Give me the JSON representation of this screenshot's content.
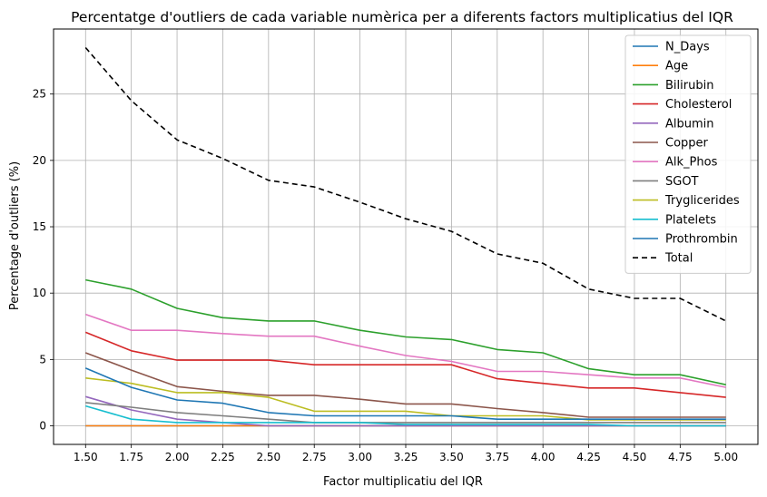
{
  "chart_data": {
    "type": "line",
    "title": "Percentatge d'outliers de cada variable numèrica per a diferents factors multiplicatius del IQR",
    "xlabel": "Factor multiplicatiu del IQR",
    "ylabel": "Percentage d'outliers (%)",
    "x": [
      1.5,
      1.75,
      2.0,
      2.25,
      2.5,
      2.75,
      3.0,
      3.25,
      3.5,
      3.75,
      4.0,
      4.25,
      4.5,
      4.75,
      5.0
    ],
    "x_tick_labels": [
      "1.50",
      "1.75",
      "2.00",
      "2.25",
      "2.50",
      "2.75",
      "3.00",
      "3.25",
      "3.50",
      "3.75",
      "4.00",
      "4.25",
      "4.50",
      "4.75",
      "5.00"
    ],
    "y_ticks": [
      0,
      5,
      10,
      15,
      20,
      25
    ],
    "ylim": [
      -1.4,
      29.9
    ],
    "xlim": [
      1.325,
      5.175
    ],
    "grid": true,
    "legend_position": "top-right",
    "series": [
      {
        "name": "N_Days",
        "color": "#1f77b4",
        "dash": "",
        "values": [
          0,
          0,
          0,
          0,
          0,
          0,
          0,
          0,
          0,
          0,
          0,
          0,
          0,
          0,
          0
        ]
      },
      {
        "name": "Age",
        "color": "#ff7f0e",
        "dash": "",
        "values": [
          0,
          0,
          0,
          0,
          0,
          0,
          0,
          0,
          0,
          0,
          0,
          0,
          0,
          0,
          0
        ]
      },
      {
        "name": "Bilirubin",
        "color": "#2ca02c",
        "dash": "",
        "values": [
          11.0,
          10.3,
          8.85,
          8.15,
          7.9,
          7.9,
          7.2,
          6.7,
          6.5,
          5.75,
          5.5,
          4.3,
          3.85,
          3.85,
          3.1
        ]
      },
      {
        "name": "Cholesterol",
        "color": "#d62728",
        "dash": "",
        "values": [
          7.05,
          5.65,
          4.95,
          4.95,
          4.95,
          4.6,
          4.6,
          4.6,
          4.6,
          3.55,
          3.2,
          2.85,
          2.85,
          2.5,
          2.15
        ]
      },
      {
        "name": "Albumin",
        "color": "#9467bd",
        "dash": "",
        "values": [
          2.2,
          1.2,
          0.5,
          0.25,
          0,
          0,
          0,
          0,
          0,
          0,
          0,
          0,
          0,
          0,
          0
        ]
      },
      {
        "name": "Copper",
        "color": "#8c564b",
        "dash": "",
        "values": [
          5.5,
          4.2,
          2.95,
          2.6,
          2.3,
          2.3,
          2.0,
          1.65,
          1.65,
          1.3,
          1.0,
          0.65,
          0.65,
          0.65,
          0.65
        ]
      },
      {
        "name": "Alk_Phos",
        "color": "#e377c2",
        "dash": "",
        "values": [
          8.4,
          7.2,
          7.2,
          6.95,
          6.75,
          6.75,
          6.0,
          5.3,
          4.85,
          4.1,
          4.1,
          3.85,
          3.6,
          3.6,
          2.9
        ]
      },
      {
        "name": "SGOT",
        "color": "#7f7f7f",
        "dash": "",
        "values": [
          1.75,
          1.4,
          1.0,
          0.75,
          0.5,
          0.25,
          0.25,
          0.25,
          0.25,
          0.25,
          0.25,
          0.25,
          0.25,
          0.25,
          0.25
        ]
      },
      {
        "name": "Tryglicerides",
        "color": "#bcbd22",
        "dash": "",
        "values": [
          3.6,
          3.2,
          2.5,
          2.5,
          2.15,
          1.1,
          1.1,
          1.1,
          0.75,
          0.75,
          0.75,
          0.45,
          0.45,
          0.45,
          0.45
        ]
      },
      {
        "name": "Platelets",
        "color": "#17becf",
        "dash": "",
        "values": [
          1.5,
          0.5,
          0.25,
          0.25,
          0.25,
          0.25,
          0.25,
          0.1,
          0.1,
          0.1,
          0.1,
          0.1,
          0,
          0,
          0
        ]
      },
      {
        "name": "Prothrombin",
        "color": "#1f77b4",
        "dash": "",
        "values": [
          4.35,
          2.9,
          1.95,
          1.7,
          1.0,
          0.75,
          0.75,
          0.75,
          0.75,
          0.5,
          0.5,
          0.5,
          0.5,
          0.5,
          0.5
        ]
      },
      {
        "name": "Total",
        "color": "#000000",
        "dash": "6,4",
        "values": [
          28.5,
          24.5,
          21.55,
          20.15,
          18.5,
          18.0,
          16.85,
          15.6,
          14.65,
          12.95,
          12.25,
          10.3,
          9.6,
          9.6,
          7.9
        ]
      }
    ]
  }
}
